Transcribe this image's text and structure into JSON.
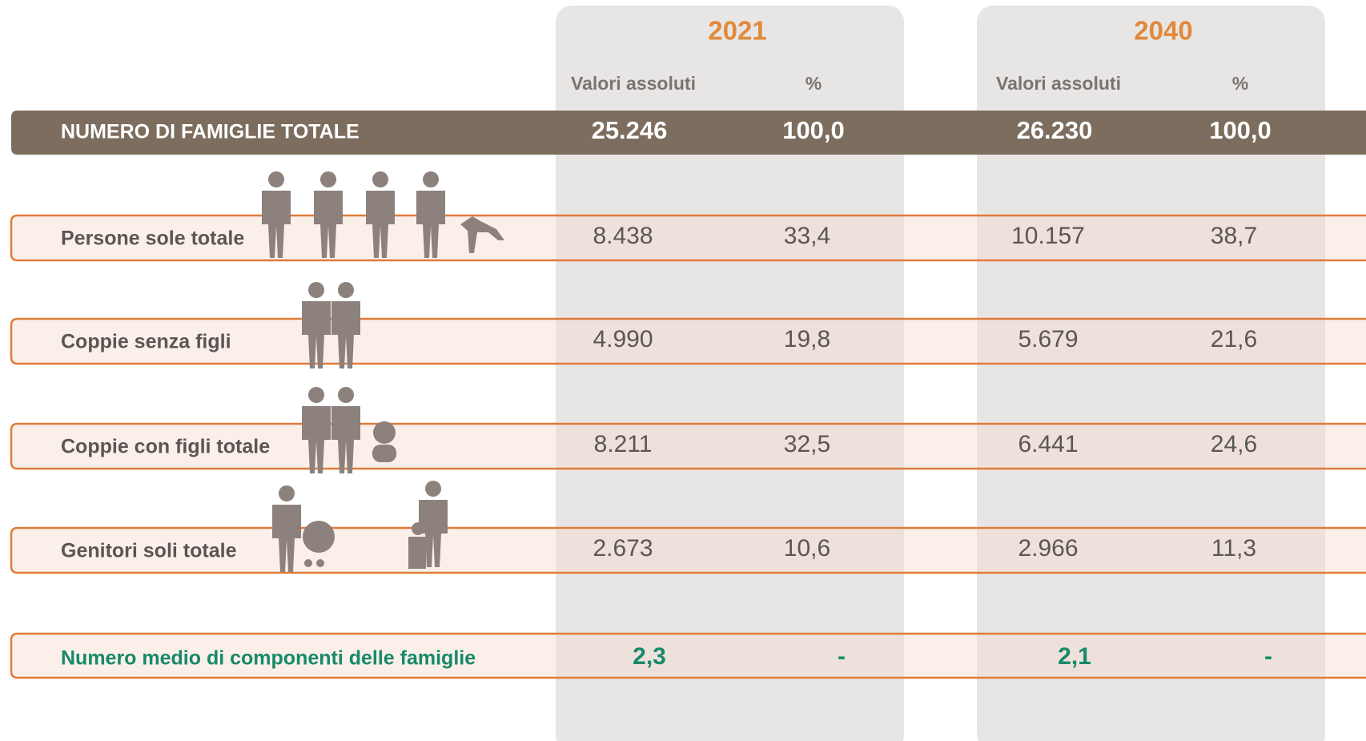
{
  "columns": [
    {
      "year": "2021",
      "headers": [
        "Valori assoluti",
        "%"
      ]
    },
    {
      "year": "2040",
      "headers": [
        "Valori assoluti",
        "%"
      ]
    }
  ],
  "total": {
    "label": "NUMERO DI FAMIGLIE TOTALE",
    "values": [
      "25.246",
      "100,0",
      "26.230",
      "100,0"
    ]
  },
  "rows": [
    {
      "label": "Persone sole totale",
      "values": [
        "8.438",
        "33,4",
        "10.157",
        "38,7"
      ]
    },
    {
      "label": "Coppie senza figli",
      "values": [
        "4.990",
        "19,8",
        "5.679",
        "21,6"
      ]
    },
    {
      "label": "Coppie con figli totale",
      "values": [
        "8.211",
        "32,5",
        "6.441",
        "24,6"
      ]
    },
    {
      "label": "Genitori soli totale",
      "values": [
        "2.673",
        "10,6",
        "2.966",
        "11,3"
      ]
    }
  ],
  "average": {
    "label": "Numero medio di componenti delle famiglie",
    "values": [
      "2,3",
      "-",
      "2,1",
      "-"
    ]
  }
}
